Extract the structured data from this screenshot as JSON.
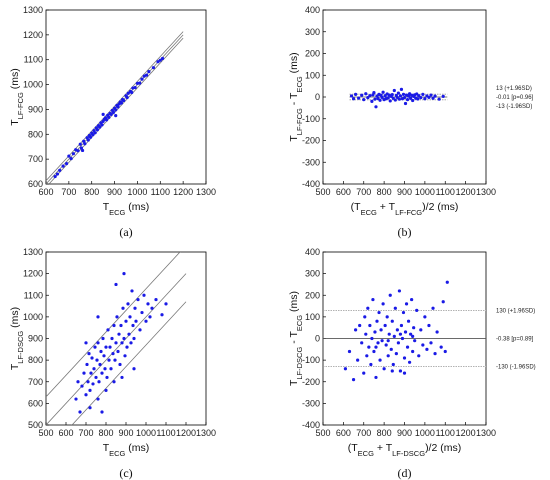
{
  "chart_data": [
    {
      "id": "a",
      "type": "scatter",
      "panel_label": "(a)",
      "xlabel": {
        "main": "T",
        "sub": "ECG",
        "tail": " (ms)"
      },
      "ylabel": {
        "main": "T",
        "sub": "LF-FCG",
        "tail": " (ms)"
      },
      "xlim": [
        600,
        1300
      ],
      "ylim": [
        600,
        1300
      ],
      "xticks": [
        "600",
        "700",
        "800",
        "900",
        "1000",
        "1100",
        "1200",
        "1300"
      ],
      "yticks": [
        "600",
        "700",
        "800",
        "900",
        "1000",
        "1100",
        "1200",
        "1300"
      ],
      "color": "#1a1ae6",
      "points": [
        [
          640,
          630
        ],
        [
          650,
          640
        ],
        [
          660,
          655
        ],
        [
          675,
          672
        ],
        [
          690,
          682
        ],
        [
          700,
          712
        ],
        [
          710,
          702
        ],
        [
          720,
          722
        ],
        [
          730,
          738
        ],
        [
          740,
          734
        ],
        [
          750,
          760
        ],
        [
          755,
          745
        ],
        [
          765,
          772
        ],
        [
          770,
          762
        ],
        [
          780,
          786
        ],
        [
          785,
          777
        ],
        [
          790,
          795
        ],
        [
          795,
          788
        ],
        [
          800,
          805
        ],
        [
          805,
          798
        ],
        [
          810,
          815
        ],
        [
          815,
          806
        ],
        [
          820,
          826
        ],
        [
          825,
          818
        ],
        [
          830,
          835
        ],
        [
          835,
          829
        ],
        [
          840,
          846
        ],
        [
          845,
          838
        ],
        [
          850,
          852
        ],
        [
          855,
          860
        ],
        [
          860,
          866
        ],
        [
          865,
          858
        ],
        [
          870,
          876
        ],
        [
          875,
          868
        ],
        [
          880,
          884
        ],
        [
          885,
          880
        ],
        [
          890,
          896
        ],
        [
          895,
          888
        ],
        [
          900,
          905
        ],
        [
          905,
          898
        ],
        [
          910,
          916
        ],
        [
          915,
          910
        ],
        [
          920,
          922
        ],
        [
          925,
          930
        ],
        [
          930,
          926
        ],
        [
          935,
          940
        ],
        [
          940,
          936
        ],
        [
          950,
          955
        ],
        [
          955,
          948
        ],
        [
          960,
          965
        ],
        [
          970,
          972
        ],
        [
          975,
          968
        ],
        [
          980,
          986
        ],
        [
          990,
          988
        ],
        [
          1000,
          1005
        ],
        [
          1010,
          1006
        ],
        [
          1020,
          1022
        ],
        [
          1030,
          1034
        ],
        [
          1040,
          1038
        ],
        [
          1050,
          1052
        ],
        [
          1070,
          1068
        ],
        [
          1090,
          1092
        ],
        [
          1100,
          1098
        ],
        [
          1110,
          1105
        ],
        [
          760,
          735
        ],
        [
          850,
          880
        ],
        [
          905,
          875
        ]
      ],
      "lines": [
        {
          "name": "identity",
          "intercept": 0
        },
        {
          "name": "upper-loa",
          "intercept": 13
        },
        {
          "name": "lower-loa",
          "intercept": -13
        }
      ]
    },
    {
      "id": "b",
      "type": "scatter",
      "panel_label": "(b)",
      "xlabel": {
        "parts": [
          {
            "t": "(T"
          },
          {
            "t": "ECG",
            "sub": true
          },
          {
            "t": " + T"
          },
          {
            "t": "LF-FCG",
            "sub": true
          },
          {
            "t": ")/2 (ms)"
          }
        ]
      },
      "ylabel": {
        "parts": [
          {
            "t": "T"
          },
          {
            "t": "LF-FCG",
            "sub": true
          },
          {
            "t": " - T"
          },
          {
            "t": "ECG",
            "sub": true
          },
          {
            "t": " (ms)"
          }
        ]
      },
      "xlim": [
        500,
        1300
      ],
      "ylim": [
        -400,
        400
      ],
      "xticks": [
        "500",
        "600",
        "700",
        "800",
        "900",
        "1000",
        "1100",
        "1200",
        "1300"
      ],
      "yticks": [
        "-400",
        "-300",
        "-200",
        "-100",
        "0",
        "100",
        "200",
        "300",
        "400"
      ],
      "color": "#1a1ae6",
      "hlines": [
        {
          "y": 13,
          "label": "13 (+1.96SD)"
        },
        {
          "y": -0.01,
          "label": "-0.01 [p=0.96]"
        },
        {
          "y": -13,
          "label": "-13 (-1.96SD)"
        }
      ],
      "line_xrange": [
        630,
        1110
      ],
      "points": [
        [
          640,
          5
        ],
        [
          650,
          -8
        ],
        [
          660,
          12
        ],
        [
          675,
          -5
        ],
        [
          690,
          8
        ],
        [
          700,
          -12
        ],
        [
          710,
          15
        ],
        [
          720,
          -3
        ],
        [
          730,
          6
        ],
        [
          740,
          -20
        ],
        [
          745,
          10
        ],
        [
          750,
          20
        ],
        [
          755,
          -10
        ],
        [
          760,
          -45
        ],
        [
          765,
          4
        ],
        [
          770,
          -7
        ],
        [
          775,
          12
        ],
        [
          780,
          -15
        ],
        [
          785,
          8
        ],
        [
          790,
          -2
        ],
        [
          795,
          22
        ],
        [
          800,
          -12
        ],
        [
          805,
          6
        ],
        [
          810,
          -8
        ],
        [
          815,
          14
        ],
        [
          820,
          -4
        ],
        [
          825,
          9
        ],
        [
          830,
          -18
        ],
        [
          835,
          3
        ],
        [
          840,
          11
        ],
        [
          845,
          -6
        ],
        [
          850,
          30
        ],
        [
          855,
          -14
        ],
        [
          860,
          7
        ],
        [
          865,
          -2
        ],
        [
          870,
          18
        ],
        [
          875,
          -10
        ],
        [
          880,
          5
        ],
        [
          885,
          35
        ],
        [
          890,
          -8
        ],
        [
          895,
          12
        ],
        [
          900,
          -3
        ],
        [
          905,
          -30
        ],
        [
          910,
          9
        ],
        [
          915,
          -12
        ],
        [
          920,
          4
        ],
        [
          925,
          15
        ],
        [
          930,
          -6
        ],
        [
          935,
          8
        ],
        [
          940,
          -16
        ],
        [
          945,
          3
        ],
        [
          950,
          10
        ],
        [
          955,
          -5
        ],
        [
          960,
          14
        ],
        [
          965,
          -9
        ],
        [
          970,
          6
        ],
        [
          980,
          -3
        ],
        [
          990,
          12
        ],
        [
          1000,
          -8
        ],
        [
          1010,
          5
        ],
        [
          1020,
          -2
        ],
        [
          1030,
          9
        ],
        [
          1040,
          -6
        ],
        [
          1050,
          4
        ],
        [
          1070,
          -10
        ],
        [
          1090,
          3
        ]
      ]
    },
    {
      "id": "c",
      "type": "scatter",
      "panel_label": "(c)",
      "xlabel": {
        "main": "T",
        "sub": "ECG",
        "tail": " (ms)"
      },
      "ylabel": {
        "main": "T",
        "sub": "LF-DSCG",
        "tail": " (ms)"
      },
      "xlim": [
        500,
        1300
      ],
      "ylim": [
        500,
        1300
      ],
      "xticks": [
        "500",
        "600",
        "700",
        "800",
        "900",
        "1000",
        "1100",
        "1200",
        "1300"
      ],
      "yticks": [
        "500",
        "600",
        "700",
        "800",
        "900",
        "1000",
        "1100",
        "1200",
        "1300"
      ],
      "color": "#1a1ae6",
      "points": [
        [
          650,
          620
        ],
        [
          660,
          700
        ],
        [
          670,
          560
        ],
        [
          680,
          680
        ],
        [
          690,
          740
        ],
        [
          700,
          640
        ],
        [
          705,
          780
        ],
        [
          710,
          700
        ],
        [
          715,
          830
        ],
        [
          720,
          660
        ],
        [
          725,
          740
        ],
        [
          730,
          810
        ],
        [
          735,
          690
        ],
        [
          740,
          760
        ],
        [
          745,
          860
        ],
        [
          750,
          720
        ],
        [
          755,
          800
        ],
        [
          760,
          880
        ],
        [
          765,
          700
        ],
        [
          770,
          780
        ],
        [
          775,
          840
        ],
        [
          780,
          740
        ],
        [
          785,
          900
        ],
        [
          790,
          820
        ],
        [
          795,
          760
        ],
        [
          800,
          860
        ],
        [
          805,
          720
        ],
        [
          810,
          940
        ],
        [
          815,
          800
        ],
        [
          820,
          860
        ],
        [
          825,
          760
        ],
        [
          830,
          900
        ],
        [
          835,
          830
        ],
        [
          840,
          960
        ],
        [
          845,
          800
        ],
        [
          850,
          880
        ],
        [
          855,
          1000
        ],
        [
          860,
          840
        ],
        [
          865,
          920
        ],
        [
          870,
          780
        ],
        [
          875,
          960
        ],
        [
          880,
          880
        ],
        [
          885,
          1040
        ],
        [
          890,
          900
        ],
        [
          895,
          820
        ],
        [
          900,
          980
        ],
        [
          905,
          860
        ],
        [
          910,
          1060
        ],
        [
          915,
          920
        ],
        [
          920,
          1000
        ],
        [
          925,
          880
        ],
        [
          930,
          1120
        ],
        [
          935,
          960
        ],
        [
          940,
          900
        ],
        [
          945,
          1040
        ],
        [
          950,
          980
        ],
        [
          960,
          1080
        ],
        [
          970,
          940
        ],
        [
          980,
          1020
        ],
        [
          990,
          1100
        ],
        [
          1000,
          980
        ],
        [
          1010,
          1060
        ],
        [
          1020,
          1000
        ],
        [
          1030,
          1040
        ],
        [
          1050,
          1080
        ],
        [
          1080,
          1010
        ],
        [
          1100,
          1060
        ],
        [
          720,
          580
        ],
        [
          760,
          620
        ],
        [
          800,
          660
        ],
        [
          840,
          700
        ],
        [
          880,
          720
        ],
        [
          940,
          760
        ],
        [
          780,
          560
        ],
        [
          850,
          1150
        ],
        [
          890,
          1200
        ],
        [
          760,
          1000
        ],
        [
          700,
          880
        ]
      ],
      "lines": [
        {
          "name": "identity",
          "intercept": 0
        },
        {
          "name": "upper-loa",
          "intercept": 130
        },
        {
          "name": "lower-loa",
          "intercept": -130
        }
      ]
    },
    {
      "id": "d",
      "type": "scatter",
      "panel_label": "(d)",
      "xlabel": {
        "parts": [
          {
            "t": "(T"
          },
          {
            "t": "ECG",
            "sub": true
          },
          {
            "t": " + T"
          },
          {
            "t": "LF-DSCG",
            "sub": true
          },
          {
            "t": ")/2 (ms)"
          }
        ]
      },
      "ylabel": {
        "parts": [
          {
            "t": "T"
          },
          {
            "t": "LF-DSCG",
            "sub": true
          },
          {
            "t": " - T"
          },
          {
            "t": "ECG",
            "sub": true
          },
          {
            "t": " (ms)"
          }
        ]
      },
      "xlim": [
        500,
        1300
      ],
      "ylim": [
        -400,
        400
      ],
      "xticks": [
        "500",
        "600",
        "700",
        "800",
        "900",
        "1000",
        "1100",
        "1200",
        "1300"
      ],
      "yticks": [
        "-400",
        "-300",
        "-200",
        "-100",
        "0",
        "100",
        "200",
        "300",
        "400"
      ],
      "color": "#1a1ae6",
      "hlines": [
        {
          "y": 130,
          "label": "130 (+1.96SD)"
        },
        {
          "y": -0.38,
          "label": "-0.38 [p=0.89]"
        },
        {
          "y": -130,
          "label": "-130 (-1.96SD)"
        }
      ],
      "line_xrange": [
        500,
        1300
      ],
      "points": [
        [
          610,
          -140
        ],
        [
          630,
          -60
        ],
        [
          650,
          -190
        ],
        [
          660,
          40
        ],
        [
          670,
          -100
        ],
        [
          680,
          60
        ],
        [
          690,
          -20
        ],
        [
          700,
          -160
        ],
        [
          705,
          100
        ],
        [
          710,
          20
        ],
        [
          715,
          -80
        ],
        [
          720,
          140
        ],
        [
          725,
          -40
        ],
        [
          730,
          60
        ],
        [
          735,
          -120
        ],
        [
          740,
          0
        ],
        [
          745,
          180
        ],
        [
          750,
          -60
        ],
        [
          755,
          30
        ],
        [
          760,
          -180
        ],
        [
          765,
          80
        ],
        [
          770,
          -20
        ],
        [
          775,
          120
        ],
        [
          780,
          -100
        ],
        [
          785,
          40
        ],
        [
          790,
          -10
        ],
        [
          795,
          160
        ],
        [
          800,
          -140
        ],
        [
          805,
          60
        ],
        [
          810,
          -30
        ],
        [
          815,
          100
        ],
        [
          820,
          -80
        ],
        [
          825,
          20
        ],
        [
          830,
          200
        ],
        [
          835,
          -50
        ],
        [
          840,
          80
        ],
        [
          845,
          -120
        ],
        [
          850,
          10
        ],
        [
          855,
          140
        ],
        [
          860,
          -70
        ],
        [
          865,
          40
        ],
        [
          870,
          -20
        ],
        [
          875,
          220
        ],
        [
          880,
          -150
        ],
        [
          885,
          60
        ],
        [
          890,
          0
        ],
        [
          895,
          120
        ],
        [
          900,
          -90
        ],
        [
          905,
          30
        ],
        [
          910,
          160
        ],
        [
          915,
          -40
        ],
        [
          920,
          80
        ],
        [
          925,
          -110
        ],
        [
          930,
          20
        ],
        [
          935,
          180
        ],
        [
          940,
          -60
        ],
        [
          945,
          50
        ],
        [
          950,
          -10
        ],
        [
          960,
          130
        ],
        [
          970,
          -80
        ],
        [
          980,
          40
        ],
        [
          990,
          -30
        ],
        [
          1000,
          100
        ],
        [
          1010,
          -50
        ],
        [
          1020,
          60
        ],
        [
          1030,
          -20
        ],
        [
          1040,
          140
        ],
        [
          1050,
          -70
        ],
        [
          1060,
          30
        ],
        [
          1080,
          -40
        ],
        [
          1090,
          170
        ],
        [
          1100,
          -60
        ],
        [
          1110,
          260
        ],
        [
          840,
          -150
        ],
        [
          900,
          -160
        ],
        [
          760,
          -40
        ],
        [
          820,
          -10
        ],
        [
          880,
          20
        ],
        [
          940,
          10
        ]
      ]
    }
  ]
}
